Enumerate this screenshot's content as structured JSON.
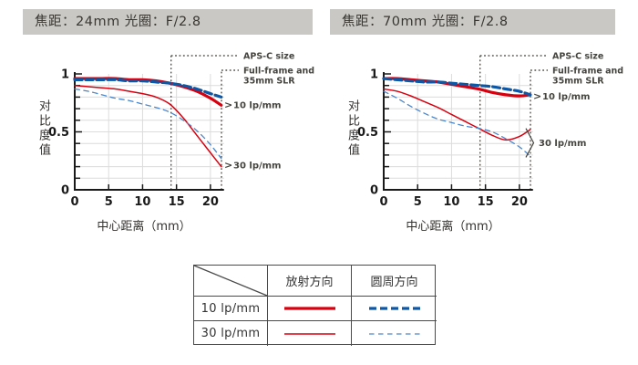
{
  "colors": {
    "background": "#ffffff",
    "header_bg": "#c9c8c4",
    "header_text": "#3a3733",
    "axis": "#1a1a1a",
    "grid": "#dcdcdc",
    "boundary_line": "#57544d",
    "annotation_text": "#45443e",
    "red": "#d7000f",
    "blue_thick": "#0d57a7",
    "blue_thin": "#4a86cc",
    "table_border": "#4a4a4a"
  },
  "line_styles": {
    "thick-red-solid": {
      "color_key": "red",
      "width": 3.2,
      "dash": ""
    },
    "thick-blue-dashed": {
      "color_key": "blue_thick",
      "width": 3.2,
      "dash": "8 4"
    },
    "thin-red-solid": {
      "color_key": "red",
      "width": 1.5,
      "dash": ""
    },
    "thin-blue-dashed": {
      "color_key": "blue_thin",
      "width": 1.3,
      "dash": "5.5 4.5"
    }
  },
  "chart_data": [
    {
      "type": "line",
      "title": "焦距：24mm 光圈：F/2.8",
      "xlabel": "中心距离（mm）",
      "ylabel": "对比度值",
      "xlim": [
        0,
        22
      ],
      "ylim": [
        0,
        1
      ],
      "grid": true,
      "xticks": [
        0,
        5,
        10,
        15,
        20
      ],
      "yticks": [
        0,
        0.5,
        1
      ],
      "ytick_labels": [
        "0",
        "0.5",
        "1"
      ],
      "x": [
        0,
        2,
        4,
        6,
        8,
        10,
        12,
        14,
        16,
        18,
        20,
        21.6
      ],
      "series": [
        {
          "name": "10 lp/mm 放射方向",
          "style": "thick-red-solid",
          "values": [
            0.96,
            0.96,
            0.96,
            0.96,
            0.95,
            0.95,
            0.94,
            0.92,
            0.89,
            0.85,
            0.79,
            0.73
          ]
        },
        {
          "name": "10 lp/mm 圆周方向",
          "style": "thick-blue-dashed",
          "values": [
            0.95,
            0.95,
            0.95,
            0.95,
            0.94,
            0.94,
            0.93,
            0.92,
            0.9,
            0.87,
            0.83,
            0.8
          ]
        },
        {
          "name": "30 lp/mm 放射方向",
          "style": "thin-red-solid",
          "values": [
            0.9,
            0.89,
            0.88,
            0.87,
            0.85,
            0.83,
            0.8,
            0.74,
            0.62,
            0.47,
            0.32,
            0.2
          ]
        },
        {
          "name": "30 lp/mm 圆周方向",
          "style": "thin-blue-dashed",
          "values": [
            0.87,
            0.85,
            0.82,
            0.79,
            0.77,
            0.74,
            0.71,
            0.67,
            0.6,
            0.51,
            0.39,
            0.27
          ]
        }
      ],
      "vlines": [
        {
          "x": 14.2,
          "label_lines": [
            "APS-C size"
          ]
        },
        {
          "x": 21.63,
          "label_lines": [
            "Full-frame and",
            "35mm SLR"
          ]
        }
      ],
      "right_labels": [
        {
          "text": "10 lp/mm",
          "marker": "arrow",
          "y": 0.735
        },
        {
          "text": "30 lp/mm",
          "marker": "arrow",
          "y": 0.215
        }
      ]
    },
    {
      "type": "line",
      "title": "焦距：70mm 光圈：F/2.8",
      "xlabel": "中心距离（mm）",
      "ylabel": "对比度值",
      "xlim": [
        0,
        22
      ],
      "ylim": [
        0,
        1
      ],
      "grid": true,
      "xticks": [
        0,
        5,
        10,
        15,
        20
      ],
      "yticks": [
        0,
        0.5,
        1
      ],
      "ytick_labels": [
        "0",
        "0.5",
        "1"
      ],
      "x": [
        0,
        2,
        4,
        6,
        8,
        10,
        12,
        14,
        16,
        18,
        20,
        21.6
      ],
      "series": [
        {
          "name": "10 lp/mm 放射方向",
          "style": "thick-red-solid",
          "values": [
            0.96,
            0.96,
            0.95,
            0.94,
            0.93,
            0.91,
            0.89,
            0.87,
            0.84,
            0.82,
            0.81,
            0.82
          ]
        },
        {
          "name": "10 lp/mm 圆周方向",
          "style": "thick-blue-dashed",
          "values": [
            0.96,
            0.95,
            0.94,
            0.93,
            0.93,
            0.92,
            0.91,
            0.9,
            0.89,
            0.87,
            0.85,
            0.82
          ]
        },
        {
          "name": "30 lp/mm 放射方向",
          "style": "thin-red-solid",
          "values": [
            0.87,
            0.85,
            0.81,
            0.76,
            0.71,
            0.65,
            0.59,
            0.53,
            0.47,
            0.43,
            0.46,
            0.52
          ]
        },
        {
          "name": "30 lp/mm 圆周方向",
          "style": "thin-blue-dashed",
          "values": [
            0.85,
            0.79,
            0.72,
            0.66,
            0.61,
            0.58,
            0.55,
            0.53,
            0.5,
            0.44,
            0.37,
            0.29
          ]
        }
      ],
      "vlines": [
        {
          "x": 14.2,
          "label_lines": [
            "APS-C size"
          ]
        },
        {
          "x": 21.63,
          "label_lines": [
            "Full-frame and",
            "35mm SLR"
          ]
        }
      ],
      "right_labels": [
        {
          "text": "10 lp/mm",
          "marker": "arrow",
          "y": 0.81
        },
        {
          "text": "30 lp/mm",
          "marker": "brace",
          "y1": 0.53,
          "y2": 0.28
        }
      ]
    }
  ],
  "legend_table": {
    "col_headers": [
      "放射方向",
      "圆周方向"
    ],
    "rows": [
      {
        "label": "10 lp/mm",
        "radial_style": "thick-red-solid",
        "circumferential_style": "thick-blue-dashed"
      },
      {
        "label": "30 lp/mm",
        "radial_style": "thin-red-solid",
        "circumferential_style": "thin-blue-dashed"
      }
    ]
  }
}
